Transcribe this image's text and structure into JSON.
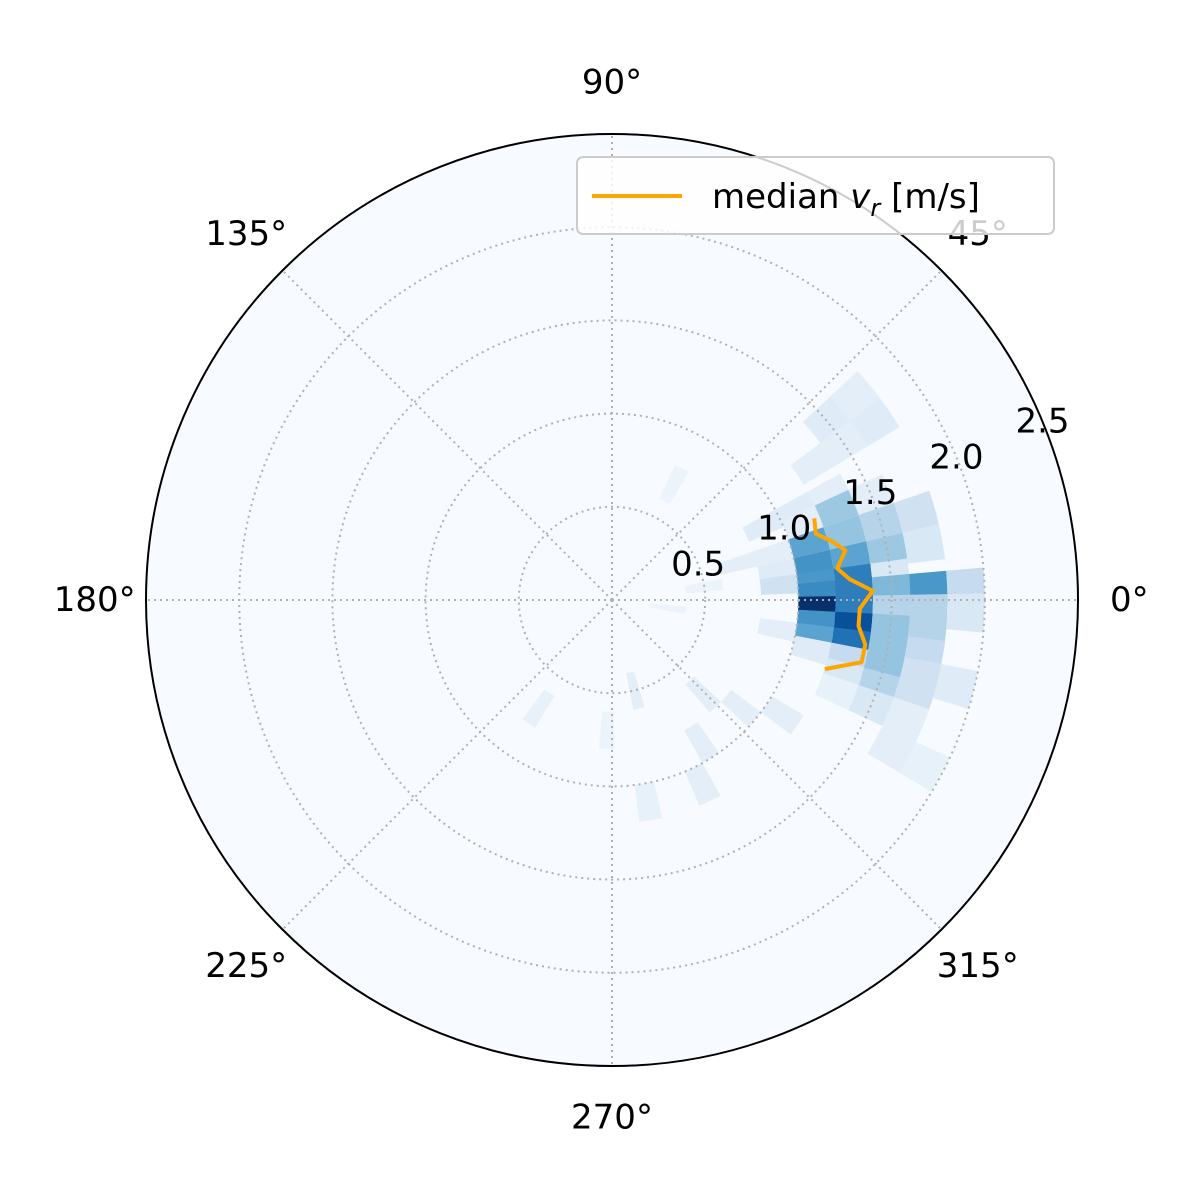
{
  "chart_data": {
    "type": "heatmap",
    "projection": "polar",
    "colormap": "Blues",
    "colors": {
      "background": "#f7fbff",
      "median_line": "#ffa500",
      "grid": "#b0b0b0",
      "spine": "#000000"
    },
    "grid": true,
    "rlim": [
      0,
      2.5
    ],
    "r_tick_labels": [
      "0.5",
      "1.0",
      "1.5",
      "2.0",
      "2.5"
    ],
    "r_ticks": [
      0.5,
      1.0,
      1.5,
      2.0,
      2.5
    ],
    "theta_tick_labels": [
      "0°",
      "45°",
      "90°",
      "135°",
      "180°",
      "225°",
      "270°",
      "315°"
    ],
    "theta_ticks_deg": [
      0,
      45,
      90,
      135,
      180,
      225,
      270,
      315
    ],
    "bin_width_deg": 6,
    "bin_dr": 0.2,
    "density_bins": [
      {
        "theta": 26,
        "r": 0.9,
        "v": 0.12
      },
      {
        "theta": 26,
        "r": 1.1,
        "v": 0.12
      },
      {
        "theta": 26,
        "r": 1.3,
        "v": 0.1
      },
      {
        "theta": 34,
        "r": 1.3,
        "v": 0.1
      },
      {
        "theta": 34,
        "r": 1.5,
        "v": 0.1
      },
      {
        "theta": 34,
        "r": 1.7,
        "v": 0.12
      },
      {
        "theta": 40,
        "r": 1.5,
        "v": 0.12
      },
      {
        "theta": 40,
        "r": 1.7,
        "v": 0.1
      },
      {
        "theta": 22,
        "r": 1.1,
        "v": 0.1
      },
      {
        "theta": 22,
        "r": 1.3,
        "v": 0.38
      },
      {
        "theta": 22,
        "r": 1.5,
        "v": 0.1
      },
      {
        "theta": 16,
        "r": 1.1,
        "v": 0.55
      },
      {
        "theta": 16,
        "r": 1.3,
        "v": 0.4
      },
      {
        "theta": 16,
        "r": 1.5,
        "v": 0.3
      },
      {
        "theta": 16,
        "r": 1.7,
        "v": 0.2
      },
      {
        "theta": 16,
        "r": 0.7,
        "v": 0.1
      },
      {
        "theta": 16,
        "r": 0.9,
        "v": 0.1
      },
      {
        "theta": 10,
        "r": 1.1,
        "v": 0.62
      },
      {
        "theta": 10,
        "r": 1.3,
        "v": 0.55
      },
      {
        "theta": 10,
        "r": 1.5,
        "v": 0.38
      },
      {
        "theta": 10,
        "r": 1.7,
        "v": 0.15
      },
      {
        "theta": 10,
        "r": 0.9,
        "v": 0.12
      },
      {
        "theta": 5,
        "r": 1.1,
        "v": 0.6
      },
      {
        "theta": 5,
        "r": 1.3,
        "v": 0.7
      },
      {
        "theta": 5,
        "r": 1.5,
        "v": 0.15
      },
      {
        "theta": 5,
        "r": 0.9,
        "v": 0.2
      },
      {
        "theta": 2,
        "r": 1.1,
        "v": 0.65
      },
      {
        "theta": 2,
        "r": 1.3,
        "v": 0.7
      },
      {
        "theta": 2,
        "r": 1.5,
        "v": 0.45
      },
      {
        "theta": 2,
        "r": 1.7,
        "v": 0.6
      },
      {
        "theta": 2,
        "r": 1.9,
        "v": 0.25
      },
      {
        "theta": -2,
        "r": 1.1,
        "v": 1.0
      },
      {
        "theta": -2,
        "r": 1.3,
        "v": 0.7
      },
      {
        "theta": -2,
        "r": 1.5,
        "v": 0.3
      },
      {
        "theta": -2,
        "r": 1.7,
        "v": 0.3
      },
      {
        "theta": -2,
        "r": 1.9,
        "v": 0.15
      },
      {
        "theta": -6,
        "r": 1.1,
        "v": 0.62
      },
      {
        "theta": -6,
        "r": 1.3,
        "v": 0.88
      },
      {
        "theta": -6,
        "r": 1.5,
        "v": 0.4
      },
      {
        "theta": -6,
        "r": 1.7,
        "v": 0.3
      },
      {
        "theta": -10,
        "r": 1.1,
        "v": 0.55
      },
      {
        "theta": -10,
        "r": 1.3,
        "v": 0.75
      },
      {
        "theta": -10,
        "r": 1.5,
        "v": 0.4
      },
      {
        "theta": -10,
        "r": 1.7,
        "v": 0.25
      },
      {
        "theta": -10,
        "r": 0.9,
        "v": 0.1
      },
      {
        "theta": -14,
        "r": 1.1,
        "v": 0.12
      },
      {
        "theta": -14,
        "r": 1.3,
        "v": 0.25
      },
      {
        "theta": -14,
        "r": 1.5,
        "v": 0.4
      },
      {
        "theta": -14,
        "r": 1.7,
        "v": 0.2
      },
      {
        "theta": -14,
        "r": 1.9,
        "v": 0.12
      },
      {
        "theta": -18,
        "r": 1.3,
        "v": 0.15
      },
      {
        "theta": -18,
        "r": 1.5,
        "v": 0.3
      },
      {
        "theta": -18,
        "r": 1.7,
        "v": 0.2
      },
      {
        "theta": -22,
        "r": 1.5,
        "v": 0.15
      },
      {
        "theta": -22,
        "r": 1.7,
        "v": 0.1
      },
      {
        "theta": -22,
        "r": 1.3,
        "v": 0.08
      },
      {
        "theta": -28,
        "r": 1.7,
        "v": 0.1
      },
      {
        "theta": -28,
        "r": 1.9,
        "v": 0.08
      },
      {
        "theta": -34,
        "r": 1.1,
        "v": 0.1
      },
      {
        "theta": -40,
        "r": 0.9,
        "v": 0.1
      },
      {
        "theta": -46,
        "r": 0.7,
        "v": 0.1
      },
      {
        "theta": -58,
        "r": 0.9,
        "v": 0.1
      },
      {
        "theta": -64,
        "r": 1.1,
        "v": 0.1
      },
      {
        "theta": -76,
        "r": 0.5,
        "v": 0.1
      },
      {
        "theta": -80,
        "r": 1.1,
        "v": 0.08
      },
      {
        "theta": -92,
        "r": 0.7,
        "v": 0.06
      },
      {
        "theta": -124,
        "r": 0.7,
        "v": 0.08
      },
      {
        "theta": 62,
        "r": 0.7,
        "v": 0.06
      },
      {
        "theta": 8,
        "r": 0.5,
        "v": 0.06
      },
      {
        "theta": -8,
        "r": 0.3,
        "v": 0.06
      }
    ],
    "series": [
      {
        "name": "median v_r [m/s]",
        "theta": [
          22,
          18,
          15,
          12,
          8,
          5,
          2,
          -2,
          -6,
          -10,
          -14,
          -18
        ],
        "r": [
          1.17,
          1.15,
          1.22,
          1.28,
          1.22,
          1.28,
          1.4,
          1.33,
          1.33,
          1.38,
          1.38,
          1.2
        ]
      }
    ],
    "legend": {
      "position": "upper-right",
      "label_main": "median ",
      "label_var": "v",
      "label_sub": "r",
      "label_unit": " [m/s]"
    }
  }
}
